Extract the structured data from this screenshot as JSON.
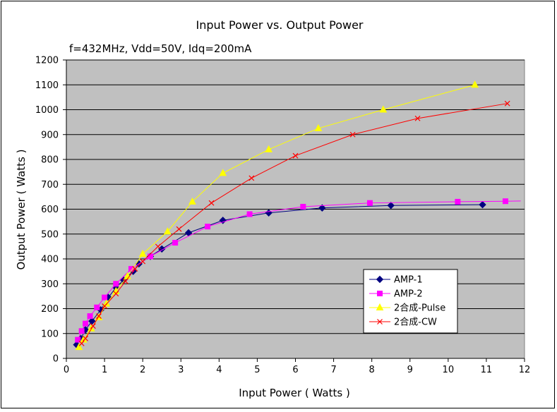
{
  "chart_data": {
    "type": "line",
    "title": "Input Power vs. Output Power",
    "subtitle": "f=432MHz, Vdd=50V, Idq=200mA",
    "xlabel": "Input Power ( Watts )",
    "ylabel": "Output Power ( Watts )",
    "xlim": [
      0,
      12
    ],
    "ylim": [
      0,
      1200
    ],
    "xticks": [
      0,
      1,
      2,
      3,
      4,
      5,
      6,
      7,
      8,
      9,
      10,
      11,
      12
    ],
    "yticks": [
      0,
      100,
      200,
      300,
      400,
      500,
      600,
      700,
      800,
      900,
      1000,
      1100,
      1200
    ],
    "grid": true,
    "legend_position": "bottom-right",
    "series": [
      {
        "name": "AMP-1",
        "color": "#000080",
        "marker": "diamond",
        "points": [
          [
            0.27,
            55
          ],
          [
            0.38,
            80
          ],
          [
            0.5,
            115
          ],
          [
            0.67,
            150
          ],
          [
            0.9,
            195
          ],
          [
            1.1,
            245
          ],
          [
            1.3,
            285
          ],
          [
            1.5,
            315
          ],
          [
            1.75,
            350
          ],
          [
            1.9,
            380
          ],
          [
            2.2,
            410
          ],
          [
            2.5,
            440
          ],
          [
            3.2,
            505
          ],
          [
            4.1,
            555
          ],
          [
            5.3,
            585
          ],
          [
            6.7,
            605
          ],
          [
            8.5,
            615
          ],
          [
            10.9,
            618
          ]
        ]
      },
      {
        "name": "AMP-2",
        "color": "#FF00FF",
        "marker": "square",
        "points": [
          [
            0.3,
            75
          ],
          [
            0.4,
            110
          ],
          [
            0.5,
            140
          ],
          [
            0.62,
            170
          ],
          [
            0.8,
            205
          ],
          [
            1.0,
            245
          ],
          [
            1.3,
            300
          ],
          [
            1.7,
            360
          ],
          [
            2.2,
            410
          ],
          [
            2.85,
            465
          ],
          [
            3.7,
            530
          ],
          [
            4.8,
            580
          ],
          [
            6.2,
            610
          ],
          [
            7.95,
            625
          ],
          [
            10.25,
            630
          ],
          [
            11.5,
            632
          ],
          [
            11.9,
            633
          ]
        ]
      },
      {
        "name": "2合成-Pulse",
        "color": "#FFFF00",
        "marker": "triangle",
        "points": [
          [
            0.33,
            45
          ],
          [
            0.45,
            75
          ],
          [
            0.65,
            120
          ],
          [
            0.85,
            165
          ],
          [
            1.05,
            220
          ],
          [
            1.3,
            270
          ],
          [
            1.6,
            330
          ],
          [
            2.0,
            420
          ],
          [
            2.65,
            510
          ],
          [
            3.3,
            630
          ],
          [
            4.1,
            745
          ],
          [
            5.3,
            840
          ],
          [
            6.6,
            925
          ],
          [
            8.3,
            1000
          ],
          [
            10.7,
            1100
          ]
        ]
      },
      {
        "name": "2合成-CW",
        "color": "#FF0000",
        "marker": "x",
        "points": [
          [
            0.4,
            60
          ],
          [
            0.5,
            80
          ],
          [
            0.7,
            130
          ],
          [
            0.85,
            170
          ],
          [
            1.0,
            210
          ],
          [
            1.3,
            260
          ],
          [
            1.55,
            310
          ],
          [
            1.8,
            360
          ],
          [
            2.0,
            390
          ],
          [
            2.4,
            450
          ],
          [
            2.95,
            520
          ],
          [
            3.8,
            625
          ],
          [
            4.85,
            725
          ],
          [
            6.0,
            815
          ],
          [
            7.5,
            900
          ],
          [
            9.2,
            965
          ],
          [
            11.55,
            1025
          ]
        ]
      }
    ]
  }
}
